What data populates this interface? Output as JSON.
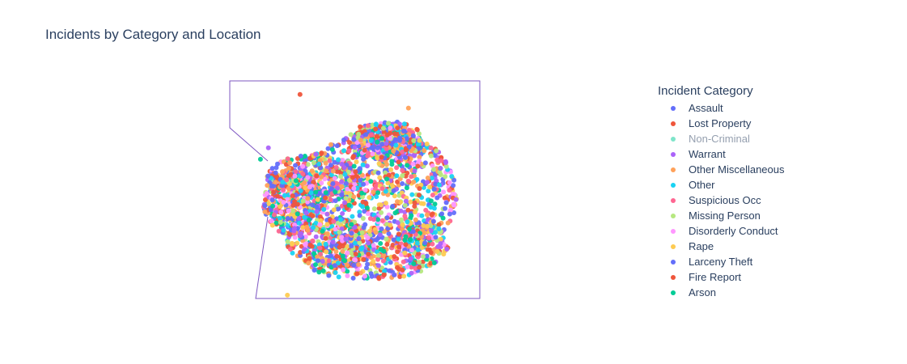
{
  "chart_data": {
    "type": "scatter",
    "title": "Incidents by Category and Location",
    "legend_title": "Incident Category",
    "legend_placement": "right",
    "grid": false,
    "series": [
      {
        "name": "Assault",
        "color": "#636efa",
        "visible": true,
        "points": [
          [
            -122.447,
            37.781
          ],
          [
            -122.421,
            37.768
          ],
          [
            -122.405,
            37.788
          ],
          [
            -122.488,
            37.755
          ],
          [
            -122.438,
            37.733
          ],
          [
            -122.412,
            37.752
          ],
          [
            -122.47,
            37.776
          ],
          [
            -122.4305,
            37.7625
          ],
          [
            -122.399,
            37.74
          ]
        ]
      },
      {
        "name": "Lost Property",
        "color": "#ef553b",
        "visible": true,
        "points": [
          [
            -122.419,
            37.7755
          ],
          [
            -122.4325,
            37.79
          ],
          [
            -122.408,
            37.7325
          ],
          [
            -122.46,
            37.7665
          ],
          [
            -122.395,
            37.7605
          ]
        ]
      },
      {
        "name": "Non-Criminal",
        "color": "#00cc96",
        "visible": false,
        "points": [
          [
            -122.427,
            37.7675
          ],
          [
            -122.4665,
            37.7285
          ]
        ]
      },
      {
        "name": "Warrant",
        "color": "#ab63fa",
        "visible": true,
        "points": [
          [
            -122.416,
            37.782
          ],
          [
            -122.4905,
            37.78
          ],
          [
            -122.4425,
            37.7705
          ],
          [
            -122.4035,
            37.7545
          ],
          [
            -122.474,
            37.7415
          ]
        ]
      },
      {
        "name": "Other Miscellaneous",
        "color": "#ffa15a",
        "visible": true,
        "points": [
          [
            -122.4115,
            37.7785
          ],
          [
            -122.4365,
            37.7565
          ],
          [
            -122.451,
            37.7815
          ],
          [
            -122.4225,
            37.7395
          ],
          [
            -122.402,
            37.799
          ]
        ]
      },
      {
        "name": "Other",
        "color": "#19d3f3",
        "visible": true,
        "points": [
          [
            -122.4255,
            37.7835
          ],
          [
            -122.4555,
            37.7505
          ],
          [
            -122.3935,
            37.7475
          ],
          [
            -122.4815,
            37.7635
          ]
        ]
      },
      {
        "name": "Suspicious Occ",
        "color": "#ff6692",
        "visible": true,
        "points": [
          [
            -122.4095,
            37.7705
          ],
          [
            -122.4395,
            37.7785
          ],
          [
            -122.4185,
            37.7605
          ],
          [
            -122.4625,
            37.7355
          ]
        ]
      },
      {
        "name": "Missing Person",
        "color": "#b6e880",
        "visible": true,
        "points": [
          [
            -122.4335,
            37.7865
          ],
          [
            -122.4685,
            37.7545
          ],
          [
            -122.4065,
            37.7455
          ],
          [
            -122.4455,
            37.7395
          ]
        ]
      },
      {
        "name": "Disorderly Conduct",
        "color": "#ff97ff",
        "visible": true,
        "points": [
          [
            -122.4135,
            37.7895
          ],
          [
            -122.4485,
            37.7655
          ],
          [
            -122.4275,
            37.7485
          ]
        ]
      },
      {
        "name": "Rape",
        "color": "#fecb52",
        "visible": true,
        "points": [
          [
            -122.4205,
            37.7725
          ],
          [
            -122.4785,
            37.7095
          ]
        ]
      },
      {
        "name": "Larceny Theft",
        "color": "#636efa",
        "visible": true,
        "points": [
          [
            -122.4075,
            37.7835
          ],
          [
            -122.4305,
            37.7745
          ],
          [
            -122.4505,
            37.7605
          ],
          [
            -122.4155,
            37.7465
          ],
          [
            -122.4855,
            37.7705
          ],
          [
            -122.4285,
            37.7225
          ]
        ]
      },
      {
        "name": "Fire Report",
        "color": "#ef553b",
        "visible": true,
        "points": [
          [
            -122.4355,
            37.7685
          ],
          [
            -122.4705,
            37.8055
          ]
        ]
      },
      {
        "name": "Arson",
        "color": "#00cc96",
        "visible": true,
        "points": [
          [
            -122.4395,
            37.7525
          ],
          [
            -122.4585,
            37.7205
          ],
          [
            -122.4175,
            37.7305
          ],
          [
            -122.4955,
            37.7745
          ]
        ]
      }
    ]
  }
}
